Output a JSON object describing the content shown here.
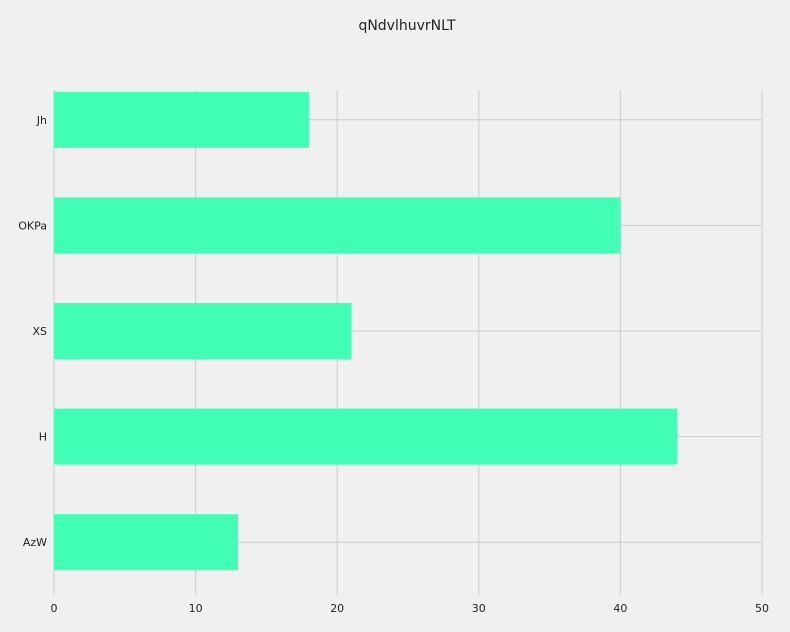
{
  "chart_data": {
    "type": "bar",
    "orientation": "horizontal",
    "title": "qNdvlhuvrNLT",
    "xlabel": "",
    "ylabel": "",
    "categories": [
      "Jh",
      "OKPa",
      "XS",
      "H",
      "AzW"
    ],
    "values": [
      18,
      40,
      21,
      44,
      13
    ],
    "xlim": [
      0,
      50
    ],
    "xticks": [
      "0",
      "10",
      "20",
      "30",
      "40",
      "50"
    ],
    "grid": true,
    "legend": "none",
    "bar_color": "#41ffb4",
    "background_color": "#f0f0f0",
    "grid_color": "#cbcbcb"
  }
}
